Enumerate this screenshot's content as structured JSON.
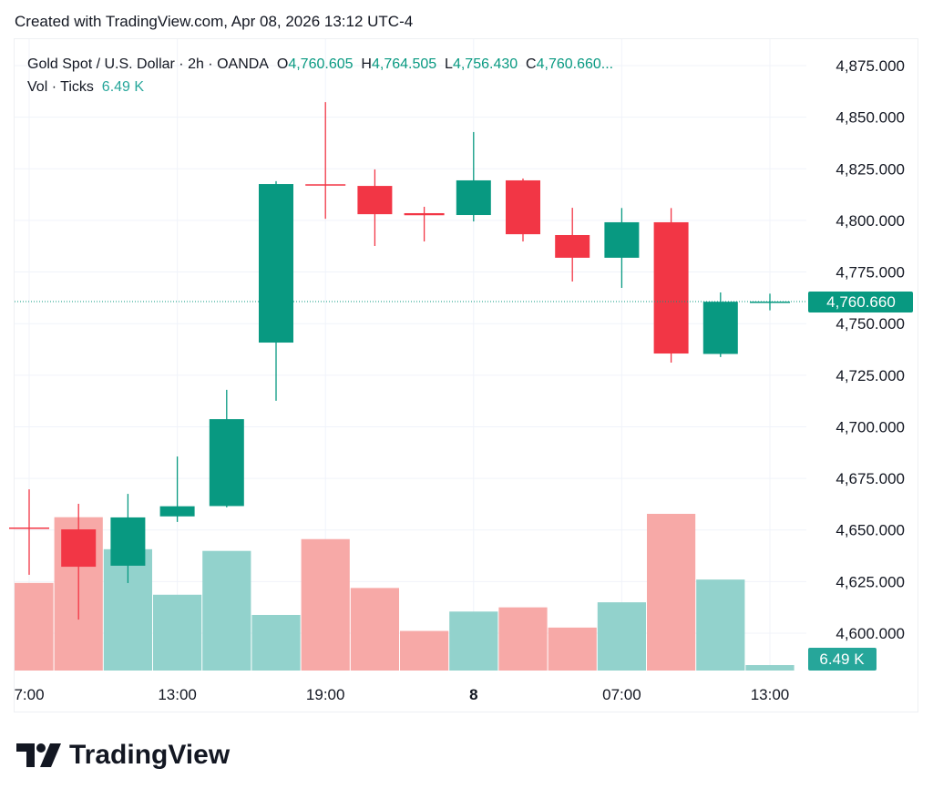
{
  "header": {
    "created": "Created with TradingView.com, Apr 08, 2026 13:12 UTC-4"
  },
  "legend": {
    "symbol": "Gold Spot / U.S. Dollar · 2h · OANDA",
    "o_label": "O",
    "o": "4,760.605",
    "h_label": "H",
    "h": "4,764.505",
    "l_label": "L",
    "l": "4,756.430",
    "c_label": "C",
    "c": "4,760.660...",
    "vol_label": "Vol · Ticks",
    "vol": "6.49 K"
  },
  "colors": {
    "up": "#089981",
    "down": "#f23645",
    "up_vol": "#92d2cc",
    "down_vol": "#f7a9a7",
    "badge": "#26a69a"
  },
  "chart_data": {
    "type": "candlestick",
    "title": "Gold Spot / U.S. Dollar · 2h · OANDA",
    "ylim": [
      4587,
      4888
    ],
    "yticks": [
      4875,
      4850,
      4825,
      4800,
      4775,
      4750,
      4725,
      4700,
      4675,
      4650,
      4625,
      4600
    ],
    "ytick_labels": [
      "4,875.000",
      "4,850.000",
      "4,825.000",
      "4,800.000",
      "4,775.000",
      "4,750.000",
      "4,725.000",
      "4,700.000",
      "4,675.000",
      "4,650.000",
      "4,625.000",
      "4,600.000"
    ],
    "xtick_labels": [
      {
        "i": 0,
        "label": "7:00"
      },
      {
        "i": 3,
        "label": "13:00"
      },
      {
        "i": 6,
        "label": "19:00"
      },
      {
        "i": 9,
        "label": "8"
      },
      {
        "i": 12,
        "label": "07:00"
      },
      {
        "i": 15,
        "label": "13:00"
      }
    ],
    "last_price_label": "4,760.660",
    "last_price": 4760.66,
    "last_volume_label": "6.49 K",
    "candles": [
      {
        "o": 4651.2,
        "h": 4669.7,
        "l": 4628.3,
        "c": 4651.0
      },
      {
        "o": 4650.3,
        "h": 4662.7,
        "l": 4606.6,
        "c": 4632.2
      },
      {
        "o": 4632.7,
        "h": 4667.5,
        "l": 4624.3,
        "c": 4656.1
      },
      {
        "o": 4656.6,
        "h": 4685.6,
        "l": 4653.9,
        "c": 4661.5
      },
      {
        "o": 4661.6,
        "h": 4717.9,
        "l": 4661.0,
        "c": 4703.7
      },
      {
        "o": 4740.8,
        "h": 4819.0,
        "l": 4712.6,
        "c": 4817.6
      },
      {
        "o": 4817.5,
        "h": 4857.3,
        "l": 4800.8,
        "c": 4817.0
      },
      {
        "o": 4816.7,
        "h": 4824.7,
        "l": 4787.6,
        "c": 4803.0
      },
      {
        "o": 4803.5,
        "h": 4806.6,
        "l": 4789.8,
        "c": 4802.5
      },
      {
        "o": 4802.6,
        "h": 4842.8,
        "l": 4799.5,
        "c": 4819.4
      },
      {
        "o": 4819.4,
        "h": 4820.3,
        "l": 4789.8,
        "c": 4793.3
      },
      {
        "o": 4792.9,
        "h": 4806.1,
        "l": 4770.4,
        "c": 4781.9
      },
      {
        "o": 4781.9,
        "h": 4806.0,
        "l": 4767.3,
        "c": 4799.1
      },
      {
        "o": 4799.1,
        "h": 4806.0,
        "l": 4731.1,
        "c": 4735.5
      },
      {
        "o": 4735.3,
        "h": 4765.1,
        "l": 4733.8,
        "c": 4760.6
      },
      {
        "o": 4760.605,
        "h": 4764.505,
        "l": 4756.43,
        "c": 4760.66
      }
    ],
    "volume_k": [
      104,
      182,
      144,
      90,
      142,
      66,
      156,
      98,
      47,
      70,
      75,
      51,
      81,
      186,
      108,
      6.49
    ]
  }
}
